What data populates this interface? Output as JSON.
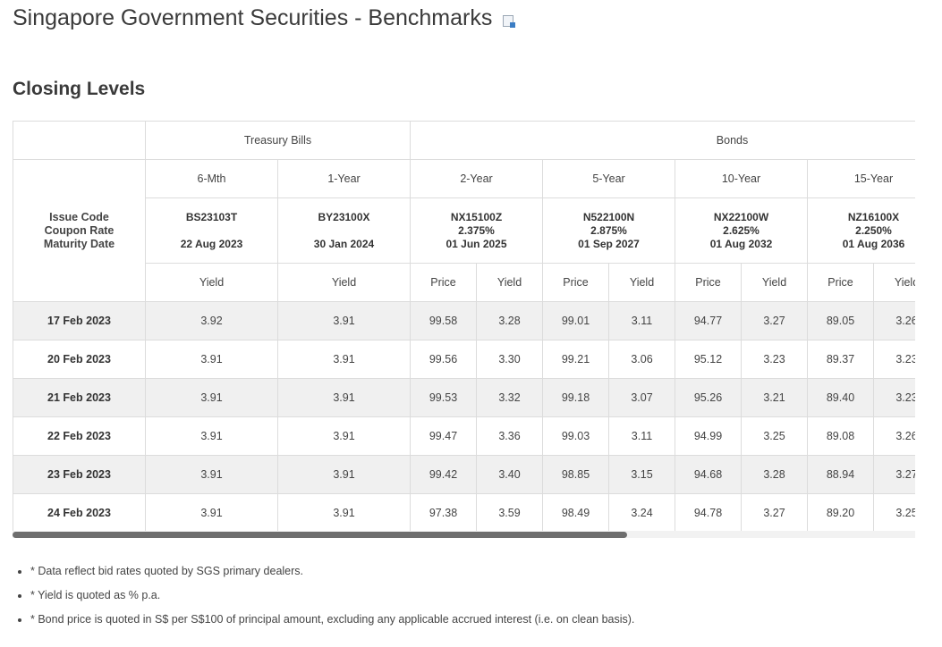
{
  "page": {
    "title": "Singapore Government Securities - Benchmarks",
    "export_icon": "spreadsheet-export-icon",
    "section_title": "Closing Levels"
  },
  "table": {
    "groups": {
      "bills": "Treasury Bills",
      "bonds": "Bonds"
    },
    "row_header": {
      "line1": "Issue Code",
      "line2": "Coupon Rate",
      "line3": "Maturity Date"
    },
    "instruments": [
      {
        "tenor": "6-Mth",
        "code": "BS23103T",
        "coupon": "",
        "maturity": "22 Aug 2023",
        "metrics": [
          "Yield"
        ]
      },
      {
        "tenor": "1-Year",
        "code": "BY23100X",
        "coupon": "",
        "maturity": "30 Jan 2024",
        "metrics": [
          "Yield"
        ]
      },
      {
        "tenor": "2-Year",
        "code": "NX15100Z",
        "coupon": "2.375%",
        "maturity": "01 Jun 2025",
        "metrics": [
          "Price",
          "Yield"
        ]
      },
      {
        "tenor": "5-Year",
        "code": "N522100N",
        "coupon": "2.875%",
        "maturity": "01 Sep 2027",
        "metrics": [
          "Price",
          "Yield"
        ]
      },
      {
        "tenor": "10-Year",
        "code": "NX22100W",
        "coupon": "2.625%",
        "maturity": "01 Aug 2032",
        "metrics": [
          "Price",
          "Yield"
        ]
      },
      {
        "tenor": "15-Year",
        "code": "NZ16100X",
        "coupon": "2.250%",
        "maturity": "01 Aug 2036",
        "metrics": [
          "Price",
          "Yield"
        ]
      }
    ],
    "rows": [
      {
        "date": "17 Feb 2023",
        "values": [
          "3.92",
          "3.91",
          "99.58",
          "3.28",
          "99.01",
          "3.11",
          "94.77",
          "3.27",
          "89.05",
          "3.26"
        ]
      },
      {
        "date": "20 Feb 2023",
        "values": [
          "3.91",
          "3.91",
          "99.56",
          "3.30",
          "99.21",
          "3.06",
          "95.12",
          "3.23",
          "89.37",
          "3.23"
        ]
      },
      {
        "date": "21 Feb 2023",
        "values": [
          "3.91",
          "3.91",
          "99.53",
          "3.32",
          "99.18",
          "3.07",
          "95.26",
          "3.21",
          "89.40",
          "3.23"
        ]
      },
      {
        "date": "22 Feb 2023",
        "values": [
          "3.91",
          "3.91",
          "99.47",
          "3.36",
          "99.03",
          "3.11",
          "94.99",
          "3.25",
          "89.08",
          "3.26"
        ]
      },
      {
        "date": "23 Feb 2023",
        "values": [
          "3.91",
          "3.91",
          "99.42",
          "3.40",
          "98.85",
          "3.15",
          "94.68",
          "3.28",
          "88.94",
          "3.27"
        ]
      },
      {
        "date": "24 Feb 2023",
        "values": [
          "3.91",
          "3.91",
          "97.38",
          "3.59",
          "98.49",
          "3.24",
          "94.78",
          "3.27",
          "89.20",
          "3.25"
        ]
      }
    ]
  },
  "notes": [
    "* Data reflect bid rates quoted by SGS primary dealers.",
    "* Yield is quoted as % p.a.",
    "* Bond price is quoted in S$ per S$100 of principal amount, excluding any applicable accrued interest (i.e. on clean basis)."
  ]
}
